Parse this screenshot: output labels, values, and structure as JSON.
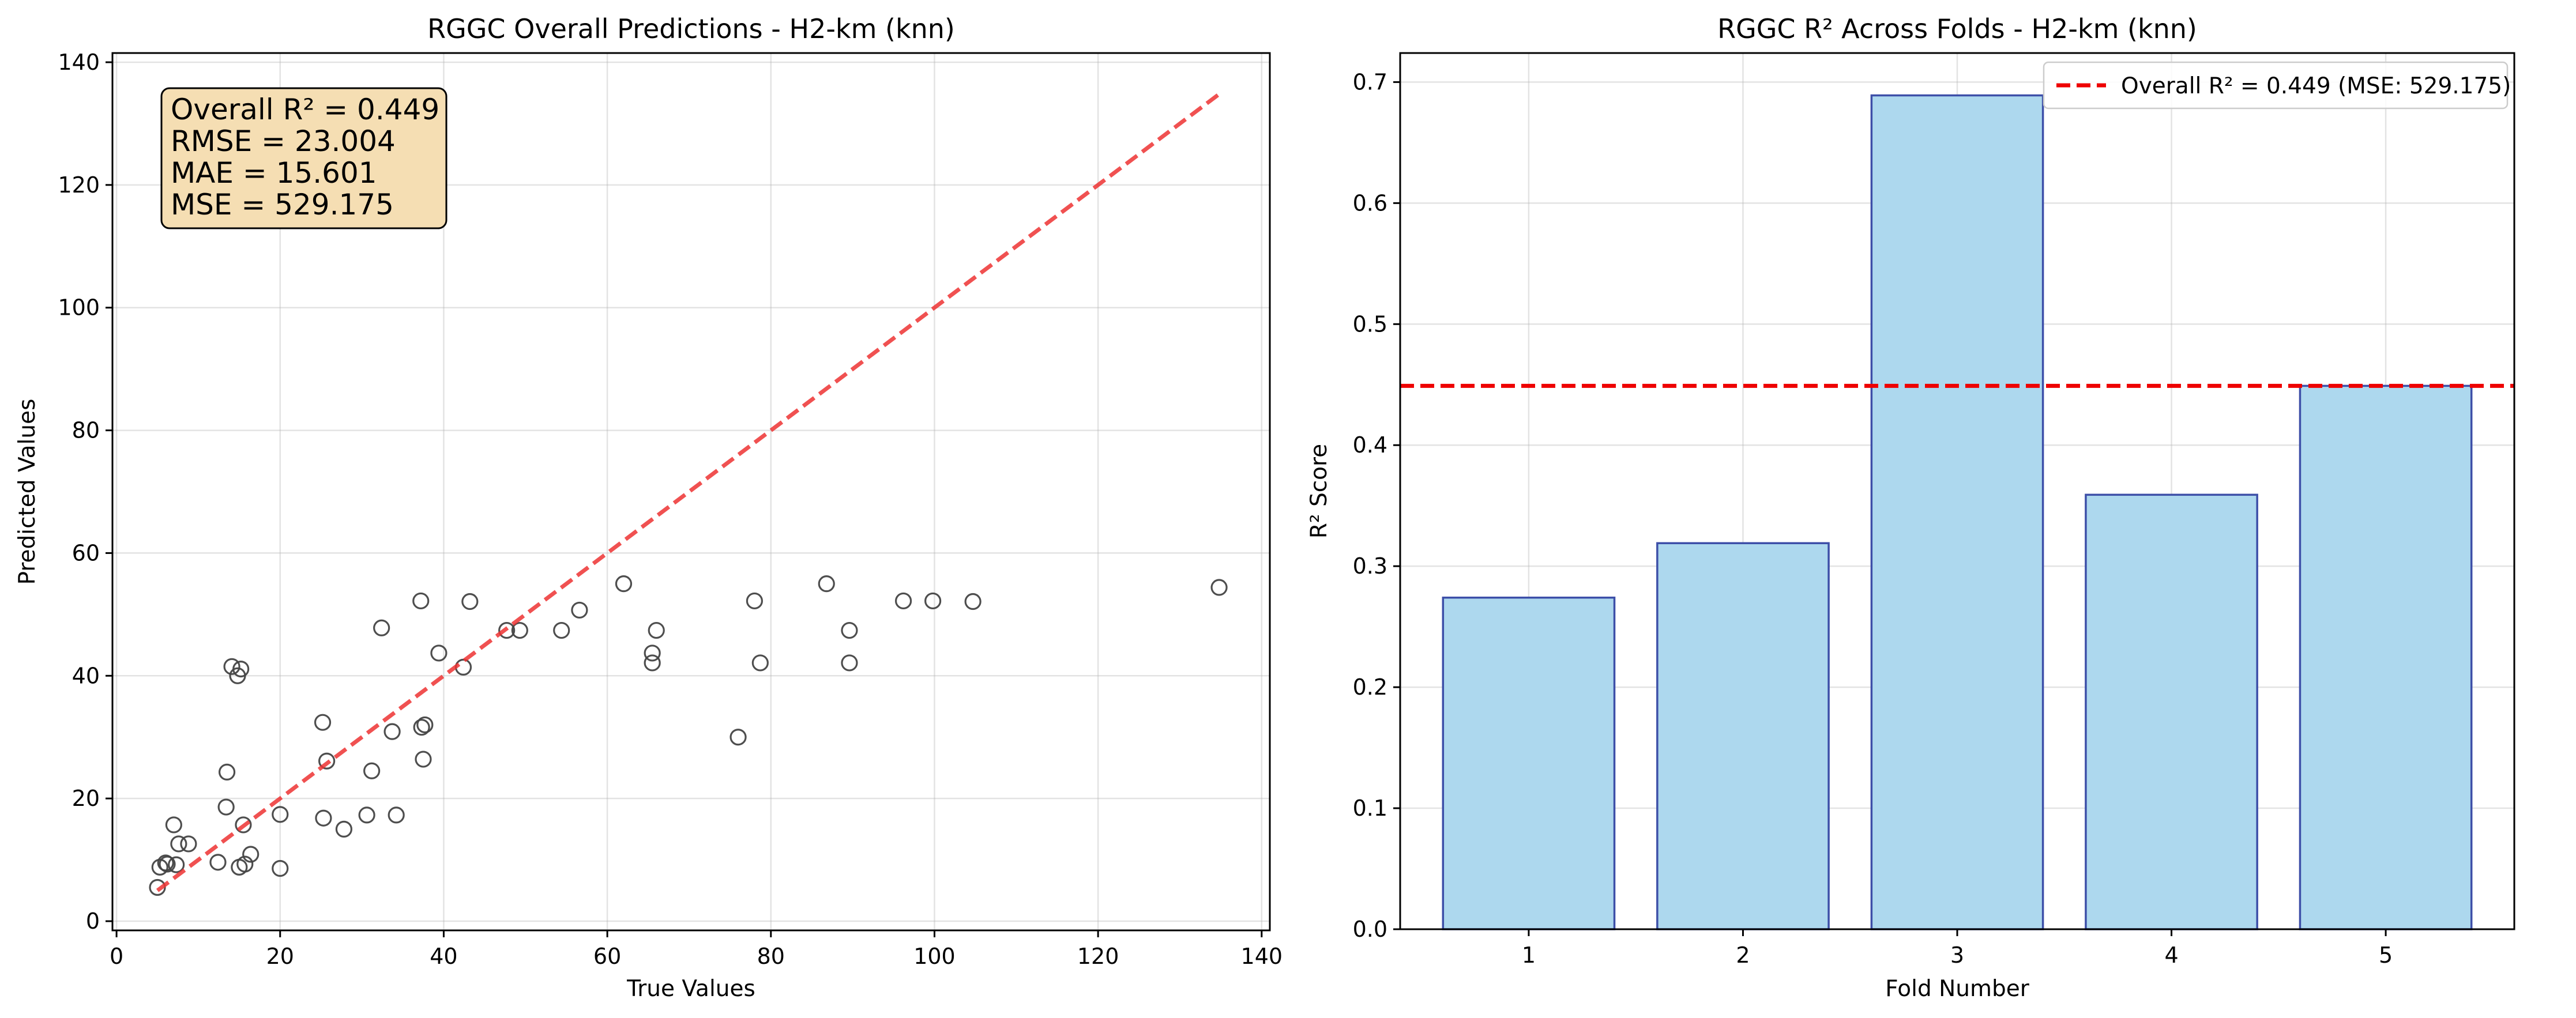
{
  "chart_data": [
    {
      "type": "scatter",
      "title": "RGGC Overall Predictions - H2-km (knn)",
      "xlabel": "True Values",
      "ylabel": "Predicted Values",
      "xlim": [
        -0.5,
        141
      ],
      "ylim": [
        -1.5,
        141.5
      ],
      "xticks": [
        0,
        20,
        40,
        60,
        80,
        100,
        120,
        140
      ],
      "yticks": [
        0,
        20,
        40,
        60,
        80,
        100,
        120,
        140
      ],
      "grid": true,
      "stats": [
        "Overall R² = 0.449",
        "RMSE = 23.004",
        "MAE = 15.601",
        "MSE = 529.175"
      ],
      "reference_line": {
        "x": [
          5,
          135
        ],
        "y": [
          5,
          135
        ],
        "color": "#ee3333",
        "style": "dashed"
      },
      "marker_color": "#444444",
      "annotation_box_color": "#f5deb3",
      "points": [
        [
          5,
          5.5
        ],
        [
          5.3,
          8.8
        ],
        [
          6,
          9.5
        ],
        [
          6.2,
          9.3
        ],
        [
          7,
          15.7
        ],
        [
          7.3,
          9.2
        ],
        [
          7.6,
          12.6
        ],
        [
          8.8,
          12.6
        ],
        [
          12.4,
          9.6
        ],
        [
          13.4,
          18.6
        ],
        [
          13.5,
          24.3
        ],
        [
          14.1,
          41.5
        ],
        [
          14.8,
          40
        ],
        [
          15.2,
          41.1
        ],
        [
          15,
          8.8
        ],
        [
          15.5,
          15.7
        ],
        [
          15.7,
          9.3
        ],
        [
          16.4,
          10.9
        ],
        [
          20,
          17.4
        ],
        [
          20,
          8.6
        ],
        [
          25.2,
          32.4
        ],
        [
          25.3,
          16.8
        ],
        [
          25.7,
          26.1
        ],
        [
          27.8,
          15
        ],
        [
          30.6,
          17.3
        ],
        [
          31.2,
          24.5
        ],
        [
          32.4,
          47.8
        ],
        [
          33.7,
          30.9
        ],
        [
          34.2,
          17.3
        ],
        [
          37.2,
          52.2
        ],
        [
          37.3,
          31.6
        ],
        [
          37.5,
          26.4
        ],
        [
          37.7,
          32
        ],
        [
          39.4,
          43.7
        ],
        [
          42.4,
          41.4
        ],
        [
          43.2,
          52.1
        ],
        [
          47.7,
          47.4
        ],
        [
          49.3,
          47.4
        ],
        [
          54.4,
          47.4
        ],
        [
          56.6,
          50.7
        ],
        [
          62,
          55
        ],
        [
          65.5,
          42.1
        ],
        [
          65.5,
          43.7
        ],
        [
          66,
          47.4
        ],
        [
          76,
          30
        ],
        [
          78,
          52.2
        ],
        [
          78.7,
          42.1
        ],
        [
          86.8,
          55
        ],
        [
          89.6,
          47.4
        ],
        [
          89.6,
          42.1
        ],
        [
          96.2,
          52.2
        ],
        [
          99.8,
          52.2
        ],
        [
          104.7,
          52.1
        ],
        [
          134.8,
          54.4
        ]
      ]
    },
    {
      "type": "bar",
      "title": "RGGC R² Across Folds - H2-km (knn)",
      "xlabel": "Fold Number",
      "ylabel": "R² Score",
      "categories": [
        "1",
        "2",
        "3",
        "4",
        "5"
      ],
      "values": [
        0.274,
        0.319,
        0.689,
        0.359,
        0.449
      ],
      "ylim": [
        0,
        0.724
      ],
      "yticks": [
        "0.0",
        "0.1",
        "0.2",
        "0.3",
        "0.4",
        "0.5",
        "0.6",
        "0.7"
      ],
      "grid": true,
      "bar_color": "#add8ee",
      "bar_edge_color": "#3d4fa8",
      "reference_line": {
        "y": 0.449,
        "color": "#ee0000",
        "style": "dashed"
      },
      "legend": {
        "position": "top-right",
        "entries": [
          "Overall R² = 0.449 (MSE: 529.175)"
        ]
      }
    }
  ]
}
